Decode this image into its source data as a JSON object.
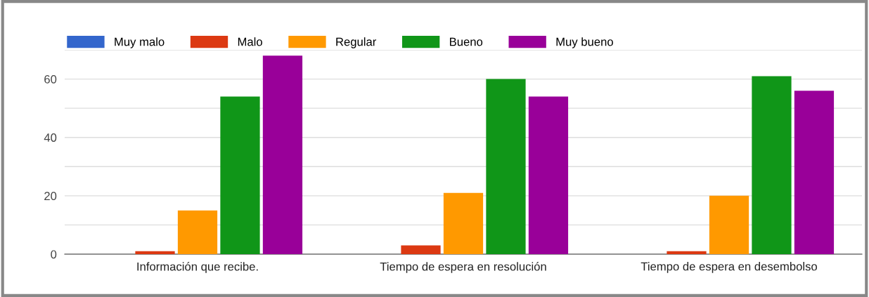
{
  "chart_data": {
    "type": "bar",
    "categories": [
      "Información que recibe.",
      "Tiempo de espera en resolución",
      "Tiempo de espera en desembolso"
    ],
    "series": [
      {
        "name": "Muy malo",
        "color": "#3366cc",
        "values": [
          0,
          0,
          0
        ]
      },
      {
        "name": "Malo",
        "color": "#dc3912",
        "values": [
          1,
          3,
          1
        ]
      },
      {
        "name": "Regular",
        "color": "#ff9900",
        "values": [
          15,
          21,
          20
        ]
      },
      {
        "name": "Bueno",
        "color": "#109618",
        "values": [
          54,
          60,
          61
        ]
      },
      {
        "name": "Muy bueno",
        "color": "#990099",
        "values": [
          68,
          54,
          56
        ]
      }
    ],
    "ylim": [
      0,
      70
    ],
    "yticks": [
      0,
      {
        "value": 10,
        "label": null
      },
      20,
      {
        "value": 30,
        "label": null
      },
      40,
      {
        "value": 50,
        "label": null
      },
      60,
      {
        "value": 70,
        "label": null
      }
    ],
    "grid": "y",
    "legend": "top left"
  }
}
